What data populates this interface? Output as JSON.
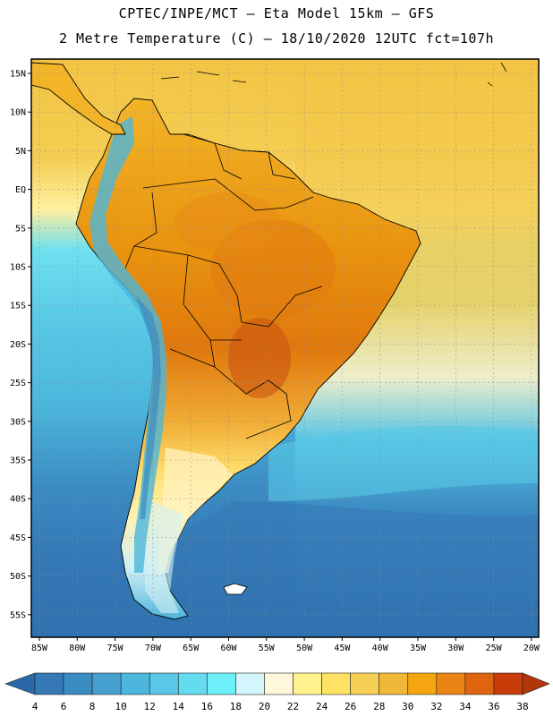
{
  "header": {
    "title_line1": "CPTEC/INPE/MCT –  Eta Model 15km – GFS",
    "title_line2": "2 Metre Temperature (C) – 18/10/2020 12UTC fct=107h"
  },
  "map": {
    "lat_labels": [
      "15N",
      "10N",
      "5N",
      "EQ",
      "5S",
      "10S",
      "15S",
      "20S",
      "25S",
      "30S",
      "35S",
      "40S",
      "45S",
      "50S",
      "55S"
    ],
    "lon_labels": [
      "85W",
      "80W",
      "75W",
      "70W",
      "65W",
      "60W",
      "55W",
      "50W",
      "45W",
      "40W",
      "35W",
      "30W",
      "25W",
      "20W"
    ]
  },
  "colorbar": {
    "levels": [
      "4",
      "6",
      "8",
      "10",
      "12",
      "14",
      "16",
      "18",
      "20",
      "22",
      "24",
      "26",
      "28",
      "30",
      "32",
      "34",
      "36",
      "38"
    ],
    "colors": [
      "#2c68a8",
      "#3479b6",
      "#3b8cc3",
      "#45a0cf",
      "#4cb6dc",
      "#58c8e6",
      "#64dcef",
      "#6ef0fa",
      "#d2f6fb",
      "#fff7dc",
      "#fff28c",
      "#ffe264",
      "#f6cf54",
      "#f0b838",
      "#f5a510",
      "#ea8414",
      "#df6410",
      "#c83c0a",
      "#b33608"
    ]
  },
  "colors": {
    "ocean_deep": "#2c68a8",
    "ocean_mid": "#3b8cc3",
    "ocean_cool": "#4cb6dc",
    "ocean_warm": "#f0d060",
    "land_hot": "#e88e14",
    "land_warm": "#f2b428"
  }
}
